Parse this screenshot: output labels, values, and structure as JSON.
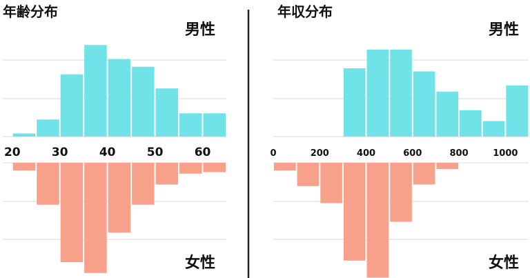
{
  "colors": {
    "male": "#6fe3e8",
    "female": "#f7a08a",
    "grid": "#d8d8d8",
    "divider": "#222222"
  },
  "chart_data": [
    {
      "type": "bar",
      "title": "年齢分布",
      "male_label": "男性",
      "female_label": "女性",
      "x_ticks": [
        "20",
        "30",
        "40",
        "50",
        "60"
      ],
      "x_tick_values": [
        20,
        30,
        40,
        50,
        60
      ],
      "xlim": [
        18,
        65
      ],
      "bin_width": 5,
      "x": [
        22.5,
        27.5,
        32.5,
        37.5,
        42.5,
        47.5,
        52.5,
        57.5,
        62.5
      ],
      "series": [
        {
          "name": "男性",
          "values": [
            0.2,
            1.1,
            4.0,
            5.9,
            5.0,
            4.5,
            3.1,
            1.5,
            1.5
          ]
        },
        {
          "name": "女性",
          "values": [
            0.5,
            2.7,
            6.4,
            7.1,
            4.5,
            2.7,
            1.4,
            0.7,
            0.6
          ]
        }
      ],
      "grid": true
    },
    {
      "type": "bar",
      "title": "年収分布",
      "male_label": "男性",
      "female_label": "女性",
      "x_ticks": [
        "0",
        "200",
        "400",
        "600",
        "800",
        "1000"
      ],
      "x_tick_values": [
        0,
        200,
        400,
        600,
        800,
        1000
      ],
      "xlim": [
        0,
        1100
      ],
      "bin_width": 100,
      "x": [
        50,
        150,
        250,
        350,
        450,
        550,
        650,
        750,
        850,
        950,
        1050
      ],
      "series": [
        {
          "name": "男性",
          "values": [
            0,
            0,
            0,
            4.4,
            5.6,
            5.6,
            4.2,
            2.9,
            1.7,
            1.0,
            3.3
          ]
        },
        {
          "name": "女性",
          "values": [
            0.5,
            1.5,
            2.6,
            6.3,
            7.4,
            3.8,
            1.4,
            0.4,
            0,
            0,
            0
          ]
        }
      ],
      "grid": true
    }
  ]
}
